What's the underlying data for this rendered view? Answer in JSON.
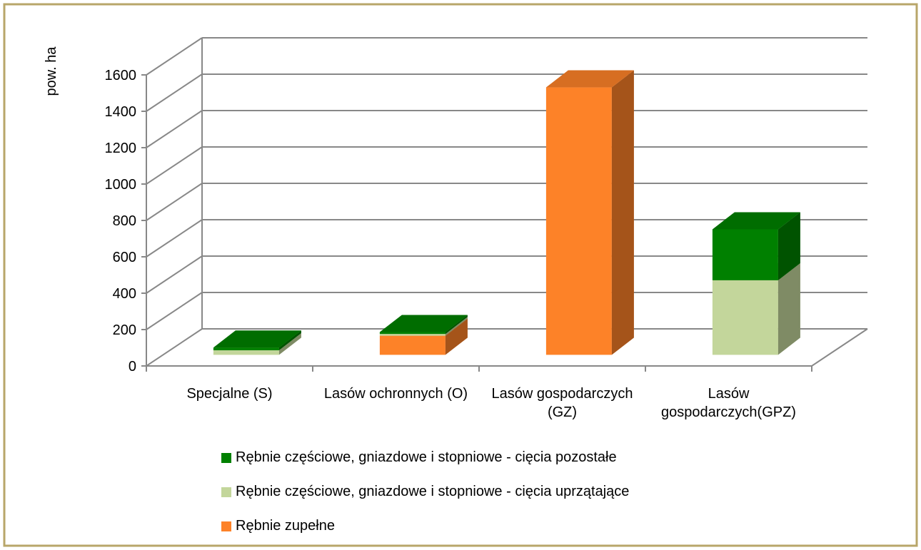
{
  "chart_data": {
    "type": "stacked_bar_3d",
    "y_label": "pow. ha",
    "categories": [
      "Specjalne (S)",
      "Lasów ochronnych (O)",
      "Lasów gospodarczych (GZ)",
      "Lasów gospodarczych(GPZ)"
    ],
    "series": [
      {
        "name": "Rębnie zupełne",
        "color": "#fd8228",
        "values": [
          0,
          105,
          1470,
          0
        ]
      },
      {
        "name": "Rębnie częściowe, gniazdowe  i stopniowe - cięcia uprzątające",
        "color": "#c3d69b",
        "values": [
          25,
          10,
          0,
          410
        ]
      },
      {
        "name": "Rębnie częściowe, gniazdowe i stopniowe - cięcia pozostałe",
        "color": "#008000",
        "values": [
          15,
          10,
          0,
          280
        ]
      }
    ],
    "legend_order": [
      2,
      1,
      0
    ],
    "ylim": [
      0,
      1600
    ],
    "yticks": [
      0,
      200,
      400,
      600,
      800,
      1000,
      1200,
      1400,
      1600
    ],
    "grid": true
  }
}
